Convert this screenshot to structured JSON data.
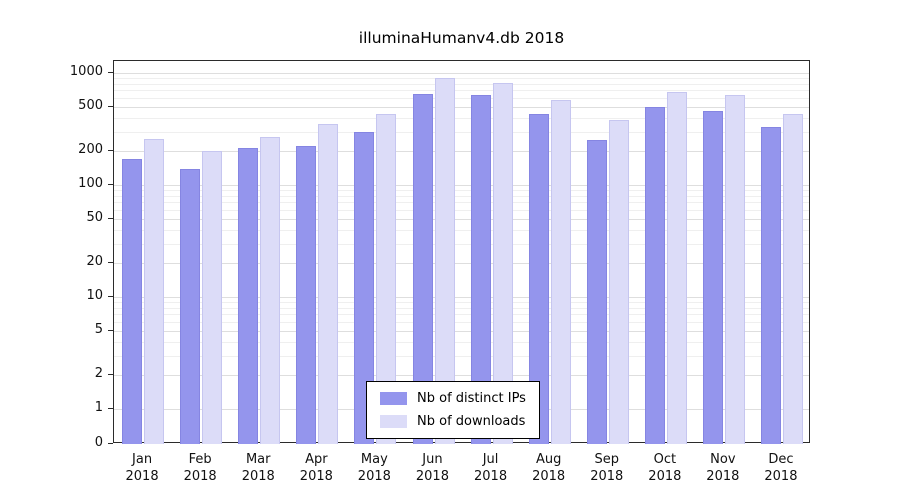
{
  "chart_data": {
    "type": "bar",
    "title": "illuminaHumanv4.db 2018",
    "year": "2018",
    "categories": [
      "Jan",
      "Feb",
      "Mar",
      "Apr",
      "May",
      "Jun",
      "Jul",
      "Aug",
      "Sep",
      "Oct",
      "Nov",
      "Dec"
    ],
    "series": [
      {
        "name": "Nb of distinct IPs",
        "color": "#9495ed",
        "border": "#8585e2",
        "values": [
          170,
          140,
          215,
          225,
          300,
          650,
          640,
          430,
          250,
          500,
          460,
          330
        ]
      },
      {
        "name": "Nb of downloads",
        "color": "#dcdcf8",
        "border": "#c6c6f0",
        "values": [
          260,
          200,
          270,
          350,
          430,
          900,
          810,
          580,
          380,
          680,
          640,
          430
        ]
      }
    ],
    "y_ticks": [
      0,
      1,
      2,
      5,
      10,
      20,
      50,
      100,
      200,
      500,
      1000
    ],
    "y_scale": "log",
    "ylim": [
      0,
      1000
    ],
    "grid": true,
    "legend_position": "bottom-center",
    "legend": [
      "Nb of distinct IPs",
      "Nb of downloads"
    ]
  },
  "colors": {
    "axis": "#2b2b2b",
    "grid_major": "#dedede",
    "grid_minor": "#efefef",
    "background": "#ffffff"
  }
}
